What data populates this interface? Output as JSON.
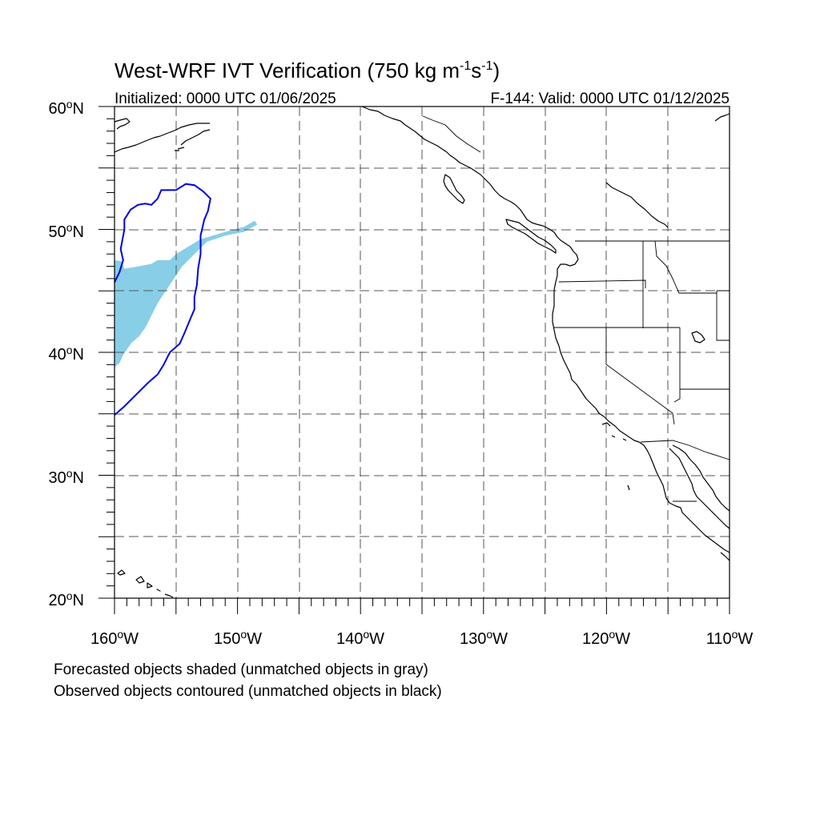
{
  "title_main": "West-WRF IVT Verification (750 kg m",
  "title_sup1": "-1",
  "title_mid": "s",
  "title_sup2": "-1",
  "title_end": ")",
  "init_text": "Initialized: 0000 UTC 01/06/2025",
  "valid_text": "F-144: Valid: 0000 UTC 01/12/2025",
  "lat_labels": [
    "60",
    "50",
    "40",
    "30",
    "20"
  ],
  "lat_suffix": "N",
  "lon_labels": [
    "160",
    "150",
    "140",
    "130",
    "120",
    "110"
  ],
  "lon_suffix": "W",
  "note_forecast": "Forecasted objects shaded (unmatched objects in gray)",
  "note_observed": "Observed objects contoured (unmatched objects in black)",
  "colors": {
    "forecast_fill": "#87cee6",
    "observed_contour": "#0000e6",
    "coastline": "#000000",
    "grid": "#555555"
  },
  "map": {
    "lon_range": [
      -160,
      -110
    ],
    "lat_range": [
      20,
      60
    ],
    "grid_spacing_deg": 5
  },
  "forecast_object": {
    "lonlat": [
      [
        -160,
        47.5
      ],
      [
        -159.4,
        47.4
      ],
      [
        -159.2,
        46.8
      ],
      [
        -158,
        47
      ],
      [
        -157,
        47.2
      ],
      [
        -156.5,
        47.5
      ],
      [
        -155.5,
        47.5
      ],
      [
        -155,
        48
      ],
      [
        -153,
        49.2
      ],
      [
        -151,
        49.8
      ],
      [
        -149.5,
        50.2
      ],
      [
        -148.6,
        50.7
      ],
      [
        -148.4,
        50.4
      ],
      [
        -149.5,
        49.8
      ],
      [
        -151,
        49.5
      ],
      [
        -152.5,
        49
      ],
      [
        -153.5,
        48
      ],
      [
        -154.5,
        47
      ],
      [
        -155.5,
        45.5
      ],
      [
        -156.5,
        44
      ],
      [
        -157,
        43
      ],
      [
        -157.5,
        42
      ],
      [
        -158,
        41.3
      ],
      [
        -158.6,
        40.8
      ],
      [
        -159.3,
        39.8
      ],
      [
        -159.6,
        39.1
      ],
      [
        -160,
        38.8
      ]
    ]
  },
  "observed_object": {
    "lonlat": [
      [
        -160,
        45.7
      ],
      [
        -159.6,
        46.5
      ],
      [
        -159.3,
        47.5
      ],
      [
        -159.5,
        48.4
      ],
      [
        -159.2,
        50
      ],
      [
        -159.2,
        50.8
      ],
      [
        -158.7,
        51.6
      ],
      [
        -158.1,
        52
      ],
      [
        -157.5,
        52.1
      ],
      [
        -157,
        52
      ],
      [
        -156.5,
        52.5
      ],
      [
        -156.2,
        53.2
      ],
      [
        -155,
        53.2
      ],
      [
        -154.2,
        53.7
      ],
      [
        -153.5,
        53.6
      ],
      [
        -152.8,
        53.1
      ],
      [
        -152.2,
        52.5
      ],
      [
        -152.4,
        51.5
      ],
      [
        -152.7,
        50.8
      ],
      [
        -153,
        49.5
      ],
      [
        -153,
        48
      ],
      [
        -153.2,
        46.8
      ],
      [
        -153.3,
        45.5
      ],
      [
        -153.5,
        44.5
      ],
      [
        -153.5,
        43.5
      ],
      [
        -153.8,
        42.8
      ],
      [
        -154.3,
        41.6
      ],
      [
        -154.7,
        40.7
      ],
      [
        -155.5,
        40
      ],
      [
        -156,
        39
      ],
      [
        -156.5,
        38.2
      ],
      [
        -157.3,
        37.5
      ],
      [
        -158.3,
        36.5
      ],
      [
        -159.2,
        35.6
      ],
      [
        -160,
        34.9
      ]
    ]
  }
}
